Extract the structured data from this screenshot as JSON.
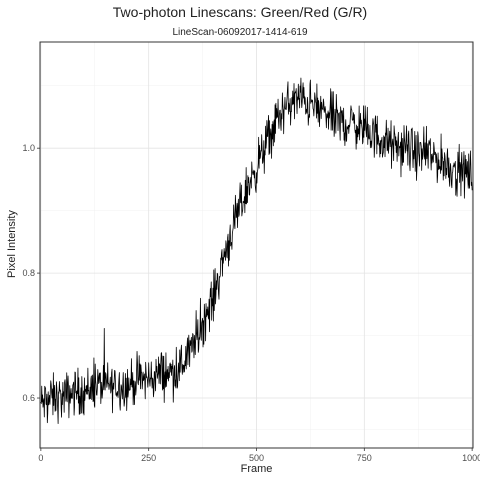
{
  "chart_data": {
    "type": "line",
    "title": "Two-photon Linescans: Green/Red (G/R)",
    "subtitle": "LineScan-06092017-1414-619",
    "xlabel": "Frame",
    "ylabel": "Pixel Intensity",
    "xlim": [
      -2,
      1002
    ],
    "ylim": [
      0.52,
      1.17
    ],
    "x_ticks": [
      0,
      250,
      500,
      750,
      1000
    ],
    "x_tick_labels": [
      "0",
      "250",
      "500",
      "750",
      "1000"
    ],
    "y_ticks": [
      0.6,
      0.8,
      1.0
    ],
    "y_tick_labels": [
      "0.6",
      "0.8",
      "1.0"
    ],
    "grid": true,
    "legend": "none",
    "line_color": "#000000",
    "series": [
      {
        "x": [
          0,
          25,
          50,
          75,
          100,
          125,
          150,
          175,
          200,
          225,
          250,
          275,
          300,
          325,
          350,
          375,
          400,
          425,
          450,
          475,
          500,
          525,
          550,
          575,
          600,
          625,
          650,
          675,
          700,
          725,
          750,
          775,
          800,
          825,
          850,
          875,
          900,
          925,
          950,
          975,
          1000
        ],
        "values": [
          0.59,
          0.6,
          0.6,
          0.61,
          0.61,
          0.62,
          0.62,
          0.62,
          0.62,
          0.63,
          0.63,
          0.64,
          0.64,
          0.65,
          0.68,
          0.72,
          0.76,
          0.83,
          0.88,
          0.93,
          0.97,
          1.01,
          1.05,
          1.07,
          1.08,
          1.07,
          1.06,
          1.05,
          1.04,
          1.04,
          1.03,
          1.02,
          1.01,
          1.0,
          1.0,
          0.99,
          0.99,
          0.98,
          0.97,
          0.96,
          0.96
        ]
      }
    ]
  }
}
